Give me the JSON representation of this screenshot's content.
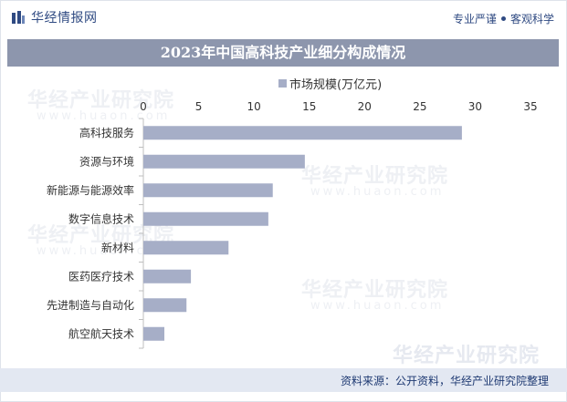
{
  "header": {
    "brand_name": "华经情报网",
    "tagline_left": "专业严谨",
    "tagline_right": "客观科学"
  },
  "footer": {
    "source": "资料来源：公开资料，华经产业研究院整理"
  },
  "watermark": {
    "text": "华经产业研究院",
    "url": "www.huaon.com"
  },
  "colors": {
    "brand": "#2f4a82",
    "bar": "#a6aec7",
    "title_bar": "#8d96ad"
  },
  "chart_data": {
    "type": "bar",
    "orientation": "horizontal",
    "title": "2023年中国高科技产业细分构成情况",
    "legend_position": "top",
    "series": [
      {
        "name": "市场规模(万亿元)",
        "values": [
          28.8,
          14.6,
          11.7,
          11.3,
          7.7,
          4.3,
          3.9,
          1.9
        ]
      }
    ],
    "categories": [
      "高科技服务",
      "资源与环境",
      "新能源与能源效率",
      "数字信息技术",
      "新材料",
      "医药医疗技术",
      "先进制造与自动化",
      "航空航天技术"
    ],
    "xlim": [
      0,
      35
    ],
    "xticks": [
      0,
      5,
      10,
      15,
      20,
      25,
      30,
      35
    ],
    "grid": false
  }
}
